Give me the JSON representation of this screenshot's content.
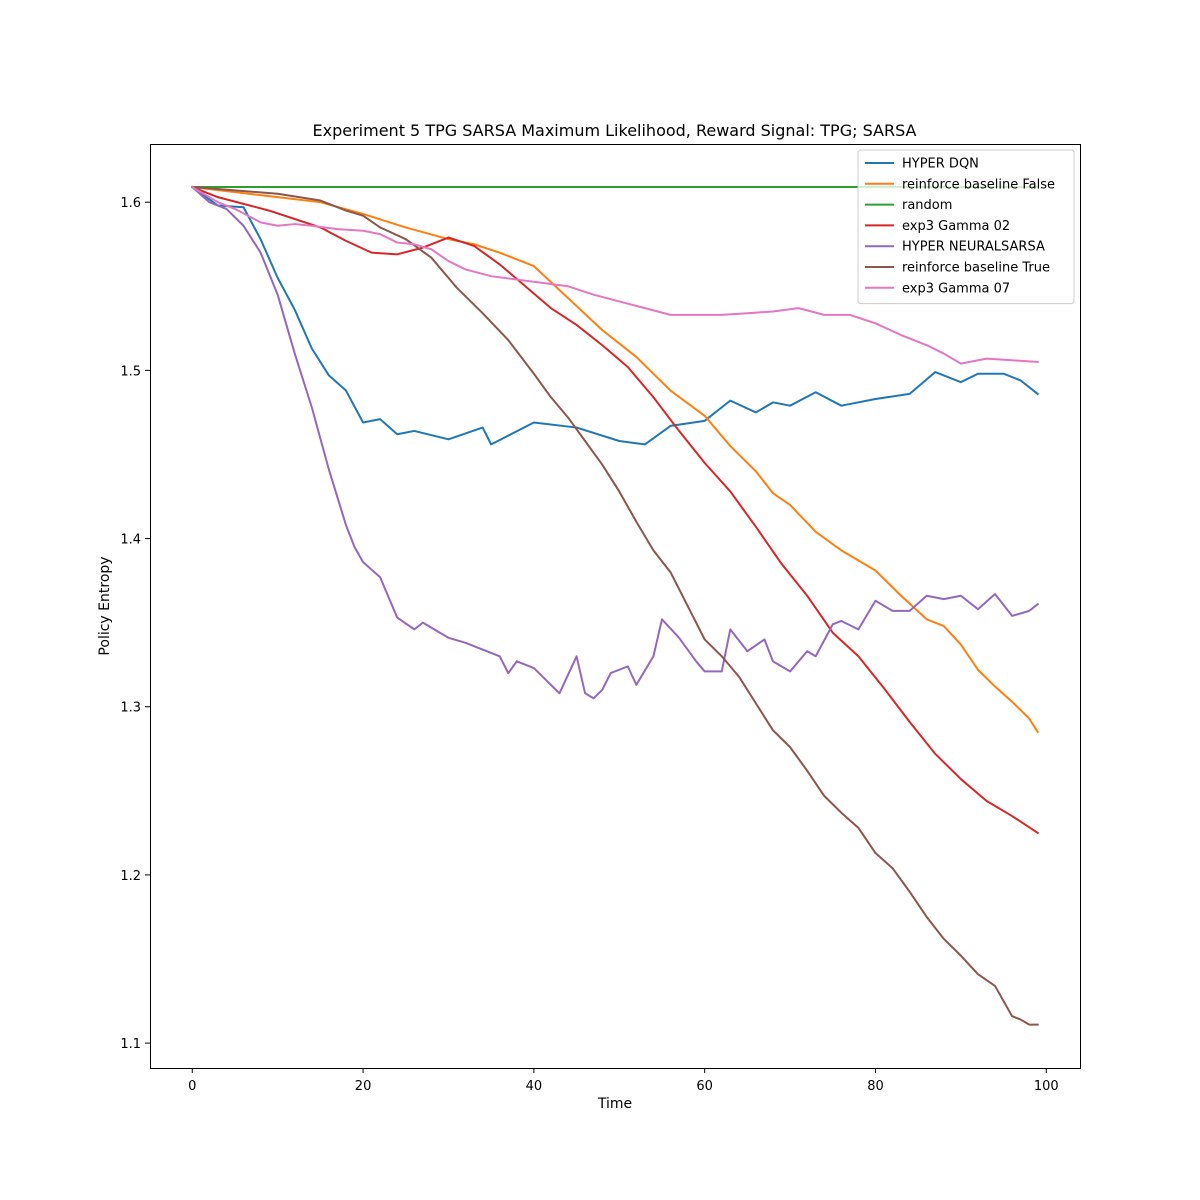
{
  "chart_data": {
    "type": "line",
    "title": "Experiment 5 TPG SARSA Maximum Likelihood,  Reward Signal: TPG; SARSA",
    "xlabel": "Time",
    "ylabel": "Policy Entropy",
    "xlim": [
      -4.95,
      103.95
    ],
    "ylim": [
      1.0852,
      1.6346
    ],
    "xticks": [
      0,
      20,
      40,
      60,
      80,
      100
    ],
    "yticks": [
      1.1,
      1.2,
      1.3,
      1.4,
      1.5,
      1.6
    ],
    "ytick_labels": [
      "1.1",
      "1.2",
      "1.3",
      "1.4",
      "1.5",
      "1.6"
    ],
    "grid": false,
    "legend_position": "top-right",
    "series": [
      {
        "name": "HYPER DQN",
        "color": "#1f77b4",
        "x": [
          0,
          3,
          6,
          8,
          10,
          12,
          14,
          16,
          18,
          20,
          22,
          24,
          26,
          30,
          34,
          35,
          40,
          45,
          50,
          53,
          56,
          60,
          63,
          66,
          68,
          70,
          73,
          76,
          80,
          84,
          87,
          90,
          92,
          95,
          97,
          99
        ],
        "y": [
          1.609,
          1.598,
          1.597,
          1.578,
          1.555,
          1.536,
          1.513,
          1.497,
          1.488,
          1.469,
          1.471,
          1.462,
          1.464,
          1.459,
          1.466,
          1.456,
          1.469,
          1.466,
          1.458,
          1.456,
          1.467,
          1.47,
          1.482,
          1.475,
          1.481,
          1.479,
          1.487,
          1.479,
          1.483,
          1.486,
          1.499,
          1.493,
          1.498,
          1.498,
          1.494,
          1.486
        ]
      },
      {
        "name": "reinforce baseline False",
        "color": "#ff7f0e",
        "x": [
          0,
          5,
          10,
          15,
          20,
          25,
          30,
          33,
          36,
          40,
          44,
          48,
          52,
          56,
          60,
          63,
          66,
          68,
          70,
          73,
          76,
          80,
          83,
          86,
          88,
          90,
          92,
          94,
          96,
          98,
          99
        ],
        "y": [
          1.609,
          1.606,
          1.603,
          1.6,
          1.593,
          1.585,
          1.578,
          1.575,
          1.57,
          1.562,
          1.543,
          1.524,
          1.508,
          1.488,
          1.473,
          1.455,
          1.44,
          1.427,
          1.42,
          1.404,
          1.393,
          1.381,
          1.366,
          1.352,
          1.348,
          1.337,
          1.322,
          1.312,
          1.303,
          1.293,
          1.285
        ]
      },
      {
        "name": "random",
        "color": "#2ca02c",
        "x": [
          0,
          99
        ],
        "y": [
          1.609,
          1.609
        ]
      },
      {
        "name": "exp3 Gamma 02",
        "color": "#d62728",
        "x": [
          0,
          3,
          6,
          9,
          12,
          15,
          18,
          21,
          24,
          27,
          30,
          33,
          36,
          39,
          42,
          45,
          48,
          51,
          54,
          57,
          60,
          63,
          66,
          69,
          72,
          75,
          78,
          81,
          84,
          87,
          90,
          93,
          96,
          99
        ],
        "y": [
          1.609,
          1.603,
          1.599,
          1.595,
          1.59,
          1.585,
          1.577,
          1.57,
          1.569,
          1.573,
          1.579,
          1.574,
          1.563,
          1.55,
          1.537,
          1.527,
          1.515,
          1.502,
          1.484,
          1.464,
          1.445,
          1.428,
          1.407,
          1.385,
          1.366,
          1.344,
          1.33,
          1.311,
          1.291,
          1.272,
          1.257,
          1.244,
          1.235,
          1.225
        ]
      },
      {
        "name": "HYPER NEURALSARSA",
        "color": "#9467bd",
        "x": [
          0,
          2,
          4,
          6,
          8,
          10,
          12,
          14,
          16,
          18,
          19,
          20,
          22,
          24,
          26,
          27,
          29,
          30,
          32,
          34,
          36,
          37,
          38,
          40,
          42,
          43,
          45,
          46,
          47,
          48,
          49,
          51,
          52,
          54,
          55,
          57,
          59,
          60,
          62,
          63,
          65,
          67,
          68,
          70,
          72,
          73,
          75,
          76,
          78,
          80,
          82,
          84,
          86,
          88,
          90,
          92,
          94,
          96,
          98,
          99
        ],
        "y": [
          1.609,
          1.6,
          1.596,
          1.586,
          1.57,
          1.545,
          1.51,
          1.478,
          1.441,
          1.408,
          1.395,
          1.386,
          1.377,
          1.353,
          1.346,
          1.35,
          1.344,
          1.341,
          1.338,
          1.334,
          1.33,
          1.32,
          1.327,
          1.323,
          1.313,
          1.308,
          1.33,
          1.308,
          1.305,
          1.31,
          1.32,
          1.324,
          1.313,
          1.33,
          1.352,
          1.341,
          1.327,
          1.321,
          1.321,
          1.346,
          1.333,
          1.34,
          1.327,
          1.321,
          1.333,
          1.33,
          1.349,
          1.351,
          1.346,
          1.363,
          1.357,
          1.357,
          1.366,
          1.364,
          1.366,
          1.358,
          1.367,
          1.354,
          1.357,
          1.361
        ]
      },
      {
        "name": "reinforce baseline True",
        "color": "#8c564b",
        "x": [
          0,
          5,
          10,
          15,
          18,
          20,
          22,
          25,
          28,
          31,
          34,
          37,
          40,
          42,
          44,
          46,
          48,
          50,
          52,
          54,
          56,
          58,
          60,
          62,
          64,
          66,
          68,
          70,
          72,
          74,
          76,
          78,
          80,
          82,
          84,
          86,
          88,
          90,
          92,
          94,
          96,
          97,
          98,
          99
        ],
        "y": [
          1.609,
          1.607,
          1.605,
          1.601,
          1.595,
          1.592,
          1.585,
          1.578,
          1.567,
          1.549,
          1.534,
          1.518,
          1.498,
          1.484,
          1.472,
          1.458,
          1.444,
          1.428,
          1.41,
          1.393,
          1.38,
          1.36,
          1.34,
          1.33,
          1.318,
          1.302,
          1.286,
          1.276,
          1.262,
          1.247,
          1.237,
          1.228,
          1.213,
          1.204,
          1.19,
          1.175,
          1.162,
          1.152,
          1.141,
          1.134,
          1.116,
          1.114,
          1.111,
          1.111
        ]
      },
      {
        "name": "exp3 Gamma 07",
        "color": "#e377c2",
        "x": [
          0,
          3,
          5,
          8,
          10,
          12,
          14,
          17,
          20,
          22,
          24,
          26,
          28,
          30,
          32,
          35,
          38,
          41,
          44,
          47,
          50,
          53,
          56,
          59,
          62,
          65,
          68,
          71,
          74,
          77,
          80,
          83,
          86,
          88,
          90,
          93,
          96,
          99
        ],
        "y": [
          1.609,
          1.6,
          1.596,
          1.588,
          1.586,
          1.587,
          1.586,
          1.584,
          1.583,
          1.581,
          1.576,
          1.575,
          1.572,
          1.565,
          1.56,
          1.556,
          1.554,
          1.552,
          1.55,
          1.545,
          1.541,
          1.537,
          1.533,
          1.533,
          1.533,
          1.534,
          1.535,
          1.537,
          1.533,
          1.533,
          1.528,
          1.521,
          1.515,
          1.51,
          1.504,
          1.507,
          1.506,
          1.505
        ]
      }
    ]
  }
}
